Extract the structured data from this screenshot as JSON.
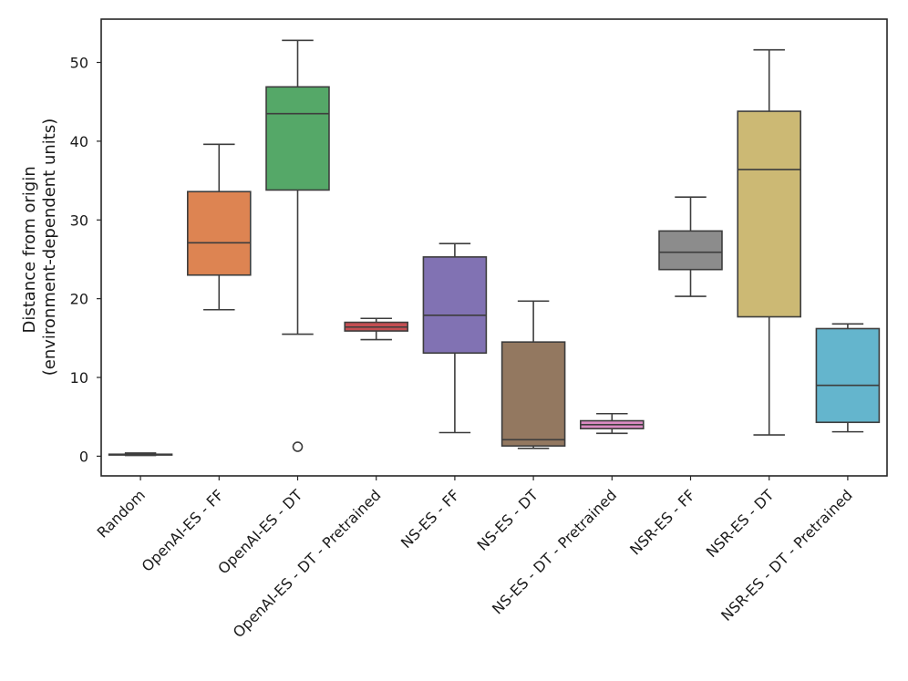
{
  "chart_data": {
    "type": "box",
    "title": "",
    "xlabel": "",
    "ylabel": [
      "Distance from origin",
      "(environment-dependent units)"
    ],
    "ylim": [
      -2.5,
      55.5
    ],
    "yticks": [
      0,
      10,
      20,
      30,
      40,
      50
    ],
    "grid": false,
    "categories": [
      "Random",
      "OpenAI-ES - FF",
      "OpenAI-ES - DT",
      "OpenAI-ES - DT - Pretrained",
      "NS-ES - FF",
      "NS-ES - DT",
      "NS-ES - DT - Pretrained",
      "NSR-ES - FF",
      "NSR-ES - DT",
      "NSR-ES - DT - Pretrained"
    ],
    "boxes": [
      {
        "name": "Random",
        "color": "#4c72b0",
        "whislo": 0.1,
        "q1": 0.15,
        "median": 0.2,
        "q3": 0.25,
        "whishi": 0.4,
        "fliers": []
      },
      {
        "name": "OpenAI-ES - FF",
        "color": "#dd8452",
        "whislo": 18.6,
        "q1": 23.0,
        "median": 27.1,
        "q3": 33.6,
        "whishi": 39.6,
        "fliers": []
      },
      {
        "name": "OpenAI-ES - DT",
        "color": "#55a868",
        "whislo": 15.5,
        "q1": 33.8,
        "median": 43.5,
        "q3": 46.9,
        "whishi": 52.8,
        "fliers": [
          1.2
        ]
      },
      {
        "name": "OpenAI-ES - DT - Pretrained",
        "color": "#c44e52",
        "whislo": 14.8,
        "q1": 15.9,
        "median": 16.4,
        "q3": 17.0,
        "whishi": 17.5,
        "fliers": []
      },
      {
        "name": "NS-ES - FF",
        "color": "#8172b3",
        "whislo": 3.0,
        "q1": 13.1,
        "median": 17.9,
        "q3": 25.3,
        "whishi": 27.0,
        "fliers": []
      },
      {
        "name": "NS-ES - DT",
        "color": "#937860",
        "whislo": 1.0,
        "q1": 1.3,
        "median": 2.1,
        "q3": 14.5,
        "whishi": 19.7,
        "fliers": []
      },
      {
        "name": "NS-ES - DT - Pretrained",
        "color": "#da8bc3",
        "whislo": 2.9,
        "q1": 3.5,
        "median": 4.0,
        "q3": 4.5,
        "whishi": 5.4,
        "fliers": []
      },
      {
        "name": "NSR-ES - FF",
        "color": "#8c8c8c",
        "whislo": 20.3,
        "q1": 23.7,
        "median": 25.9,
        "q3": 28.6,
        "whishi": 32.9,
        "fliers": []
      },
      {
        "name": "NSR-ES - DT",
        "color": "#ccb974",
        "whislo": 2.7,
        "q1": 17.7,
        "median": 36.4,
        "q3": 43.8,
        "whishi": 51.6,
        "fliers": []
      },
      {
        "name": "NSR-ES - DT - Pretrained",
        "color": "#64b5cd",
        "whislo": 3.1,
        "q1": 4.3,
        "median": 9.0,
        "q3": 16.2,
        "whishi": 16.8,
        "fliers": []
      }
    ]
  }
}
